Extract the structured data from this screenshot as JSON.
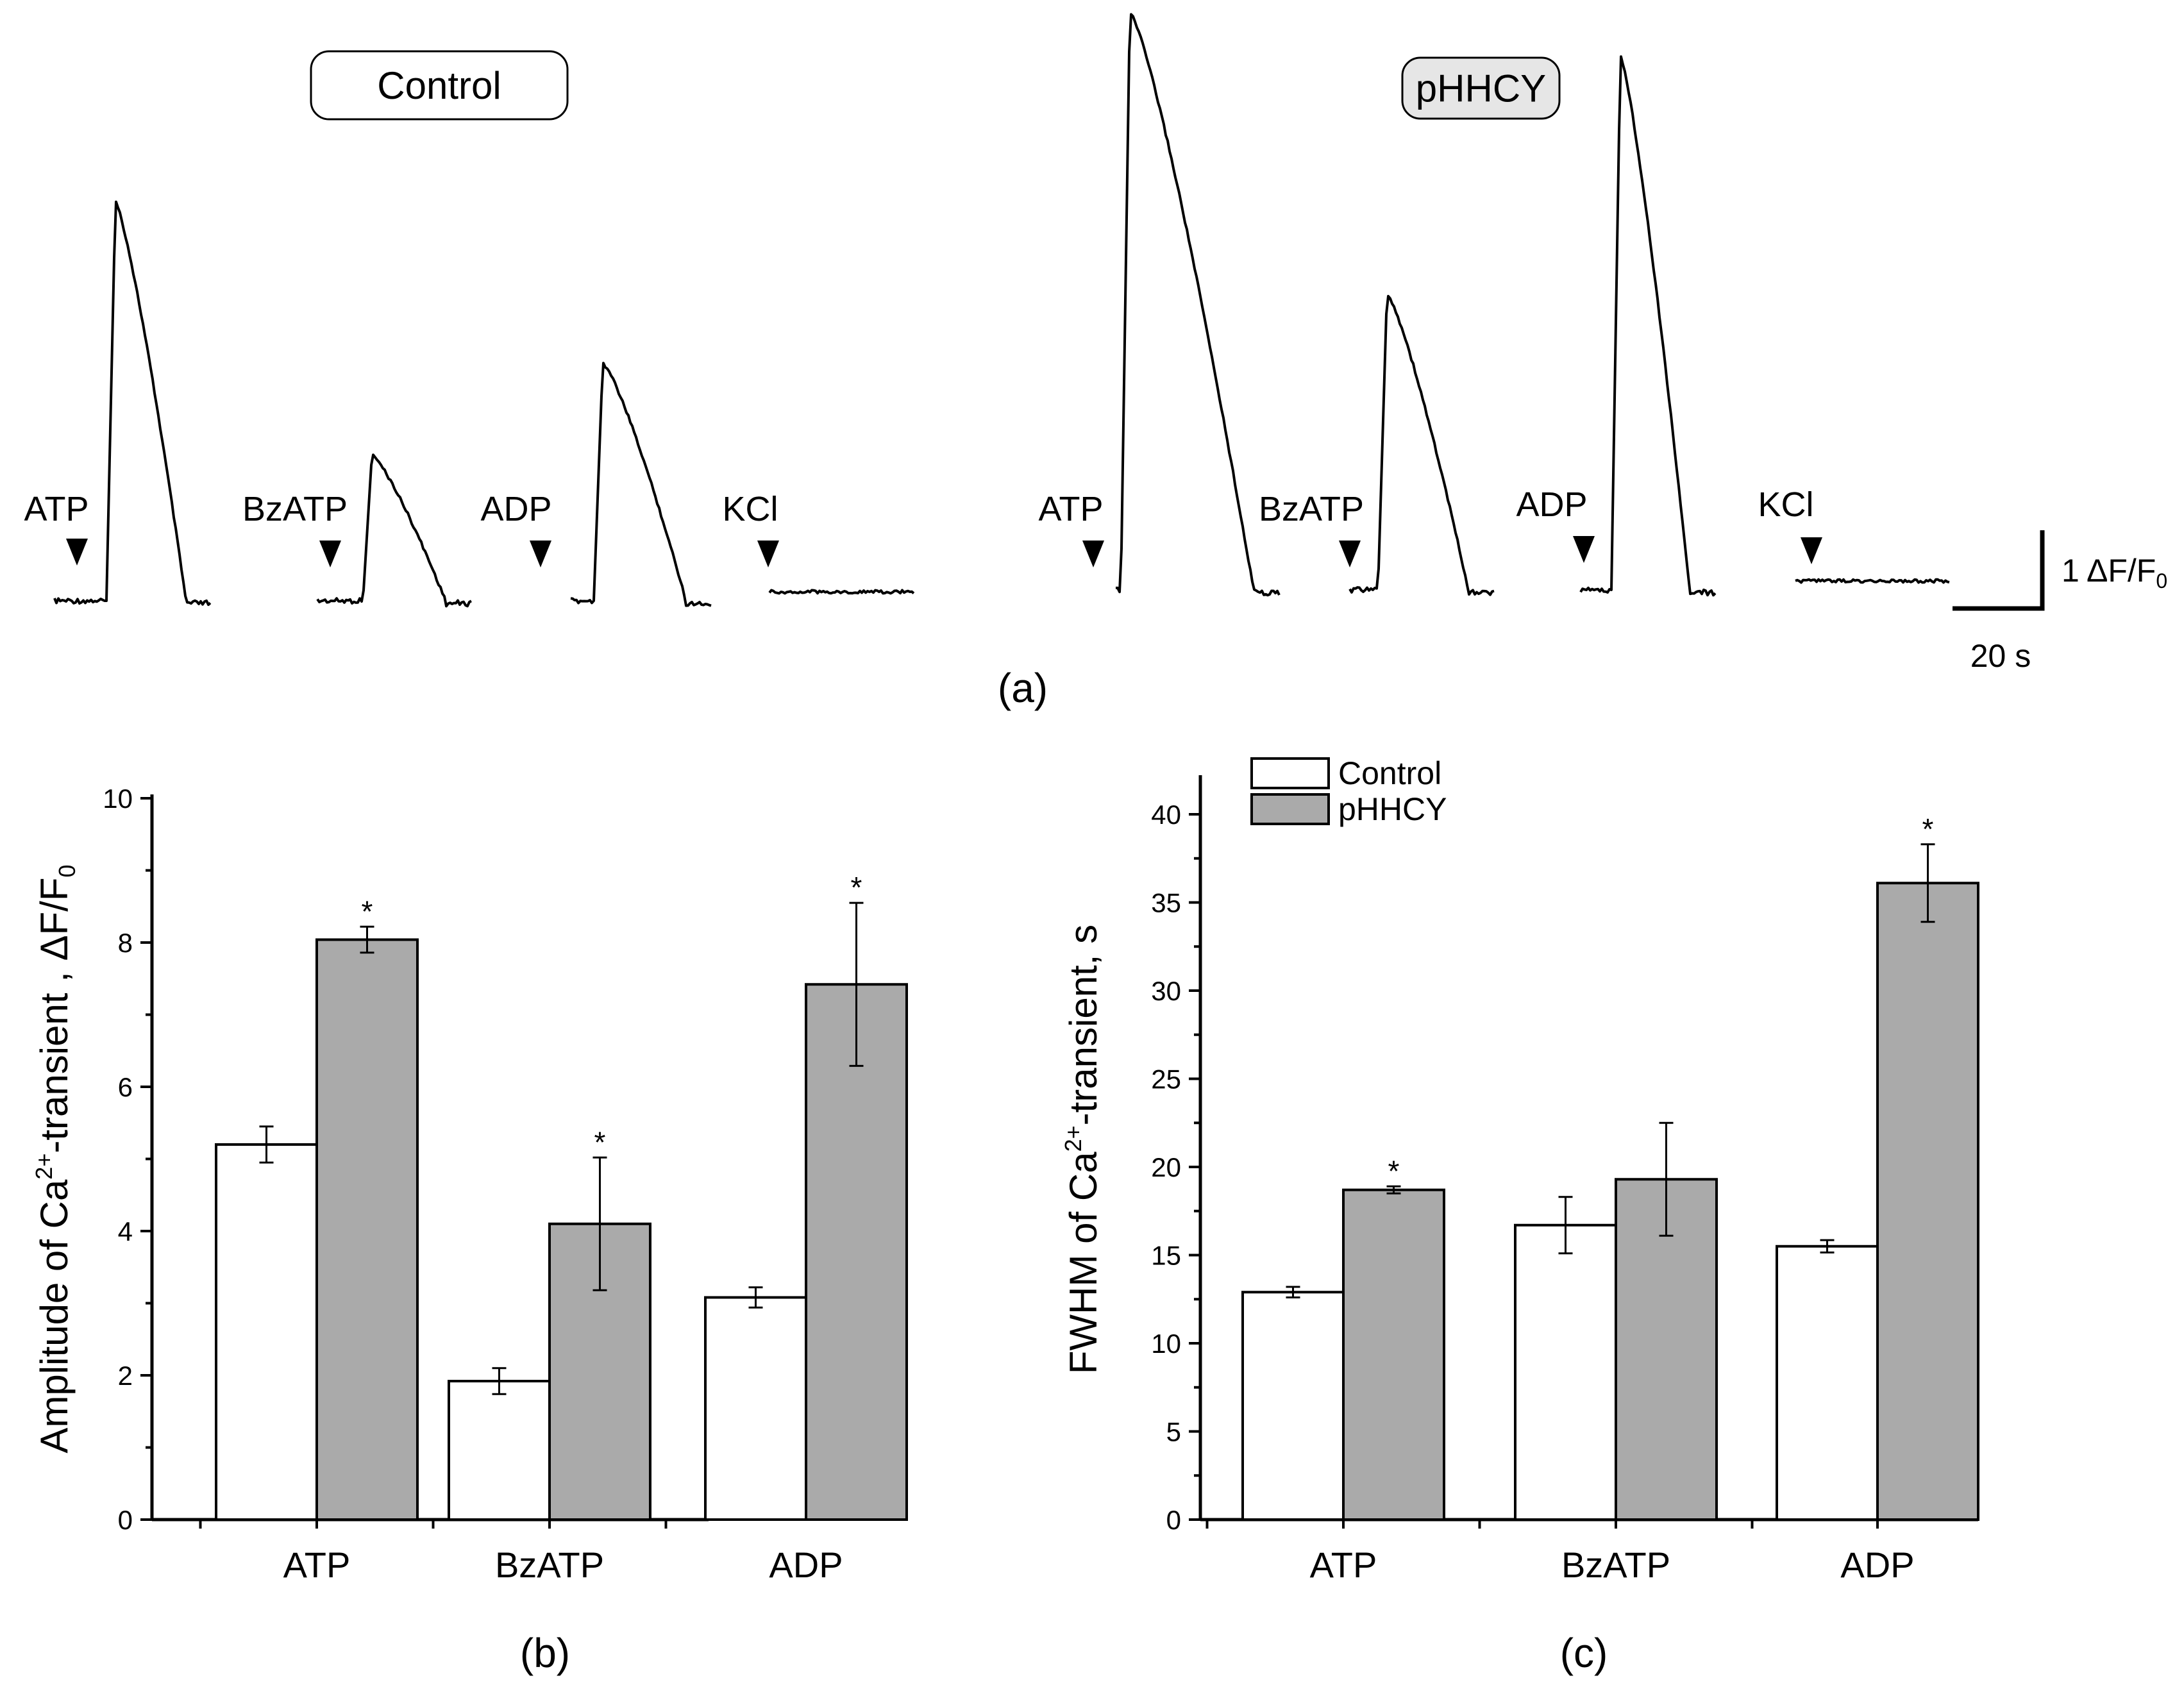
{
  "panel_a": {
    "label": "(a)",
    "scale_bar": {
      "y_label": "1 ΔF/F",
      "y_label_sub": "0",
      "x_label": "20 s"
    },
    "groups": [
      {
        "name": "Control",
        "badge_fill": "#ffffff",
        "stimuli": [
          {
            "label": "ATP",
            "peak": 5.2
          },
          {
            "label": "BzATP",
            "peak": 1.9
          },
          {
            "label": "ADP",
            "peak": 3.1
          },
          {
            "label": "KCl",
            "peak": 0
          }
        ]
      },
      {
        "name": "pHHCY",
        "badge_fill": "#e6e6e6",
        "stimuli": [
          {
            "label": "ATP",
            "peak": 8.0
          },
          {
            "label": "BzATP",
            "peak": 4.1
          },
          {
            "label": "ADP",
            "peak": 7.4
          },
          {
            "label": "KCl",
            "peak": 0
          }
        ]
      }
    ]
  },
  "chart_data": [
    {
      "type": "bar",
      "panel": "(b)",
      "categories": [
        "ATP",
        "BzATP",
        "ADP"
      ],
      "series": [
        {
          "name": "Control",
          "values": [
            5.2,
            1.92,
            3.08
          ],
          "errors": [
            0.25,
            0.18,
            0.14
          ],
          "color": "#ffffff",
          "significant": [
            false,
            false,
            false
          ]
        },
        {
          "name": "pHHCY",
          "values": [
            8.04,
            4.1,
            7.42
          ],
          "errors": [
            0.18,
            0.92,
            1.13
          ],
          "color": "#aaaaaa",
          "significant": [
            true,
            true,
            true
          ]
        }
      ],
      "ylabel": "Amplitude of Ca",
      "ylabel_sup": "2+",
      "ylabel_rest": "-transient , ΔF/F",
      "ylabel_sub": "0",
      "ylim": [
        0,
        10
      ],
      "yticks": [
        "0",
        "2",
        "4",
        "6",
        "8",
        "10"
      ],
      "legend": false
    },
    {
      "type": "bar",
      "panel": "(c)",
      "categories": [
        "ATP",
        "BzATP",
        "ADP"
      ],
      "series": [
        {
          "name": "Control",
          "values": [
            12.9,
            16.7,
            15.5
          ],
          "errors": [
            0.3,
            1.6,
            0.35
          ],
          "color": "#ffffff",
          "significant": [
            false,
            false,
            false
          ]
        },
        {
          "name": "pHHCY",
          "values": [
            18.7,
            19.3,
            36.1
          ],
          "errors": [
            0.2,
            3.2,
            2.2
          ],
          "color": "#aaaaaa",
          "significant": [
            true,
            false,
            true
          ]
        }
      ],
      "ylabel": "FWHM of Ca",
      "ylabel_sup": "2+",
      "ylabel_rest": "-transient, s",
      "ylim": [
        0,
        42
      ],
      "yticks": [
        "0",
        "5",
        "10",
        "15",
        "20",
        "25",
        "30",
        "35",
        "40"
      ],
      "legend": true,
      "legend_position": "top-left"
    }
  ]
}
